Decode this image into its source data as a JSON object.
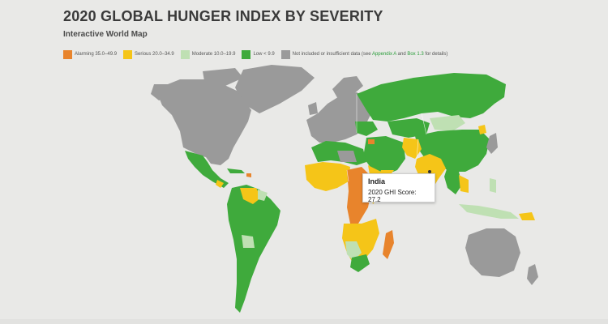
{
  "header": {
    "title": "2020 GLOBAL HUNGER INDEX BY SEVERITY",
    "subtitle": "Interactive World Map"
  },
  "legend": [
    {
      "label": "Alarming 35.0–49.9",
      "color": "#e8842c"
    },
    {
      "label": "Serious 20.0–34.9",
      "color": "#f5c518"
    },
    {
      "label": "Moderate 10.0–19.9",
      "color": "#bfe0b3"
    },
    {
      "label": "Low < 9.9",
      "color": "#3faa3c"
    }
  ],
  "legend_na": {
    "color": "#9a9a9a",
    "prefix": "Not included or insufficient data (see ",
    "link1": "Appendix A",
    "middle": " and ",
    "link2": "Box 1.3",
    "suffix": " for details)"
  },
  "tooltip": {
    "country": "India",
    "score_text": "2020 GHI Score:",
    "score_value": "27.2"
  },
  "colors": {
    "alarming": "#e8842c",
    "serious": "#f5c518",
    "moderate": "#bfe0b3",
    "low": "#3faa3c",
    "na": "#9a9a9a",
    "background": "#e9e9e7"
  }
}
